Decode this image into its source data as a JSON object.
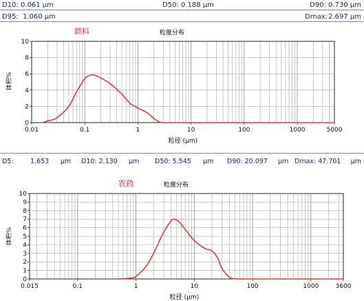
{
  "stats_top": {
    "d10": "D10: 0.061 µm",
    "d50": "D50: 0.188 µm",
    "d90": "D90: 0.730 µm",
    "d95_label": "D95:",
    "d95_value": "1.060 µm",
    "dmax_label": "Dmax:",
    "dmax_value": "2.697 µm"
  },
  "stats_bottom": {
    "d5_label": "D5:",
    "d5_value": "1.653",
    "d5_unit": "µm",
    "d10_label": "D10: 2.130",
    "d10_unit": "µm",
    "d50_label": "D50: 5.545",
    "d50_unit": "µm",
    "d90_label": "D90: 20.097",
    "d90_unit": "µm",
    "dmax_label": "Dmax: 47.701",
    "dmax_unit": "µm"
  },
  "colors": {
    "curve": "#e53935",
    "text_blue": "#1a237e",
    "grid": "#b0b0b0"
  },
  "chart_data": [
    {
      "type": "line",
      "name_label": "颜料",
      "title": "粒度分布",
      "xlabel": "粒径 (µm)",
      "ylabel": "体积%",
      "xscale": "log",
      "xlim": [
        0.01,
        5000
      ],
      "ylim": [
        0,
        10
      ],
      "xticks": [
        "0.01",
        "0.1",
        "1",
        "10",
        "100",
        "1000",
        "5000"
      ],
      "yticks": [
        "0",
        "2",
        "4",
        "6",
        "8",
        "10"
      ],
      "x": [
        0.016,
        0.02,
        0.03,
        0.05,
        0.07,
        0.1,
        0.13,
        0.16,
        0.2,
        0.3,
        0.5,
        0.7,
        1.0,
        1.5,
        2.0,
        2.5,
        3.0
      ],
      "y": [
        0.0,
        0.2,
        0.6,
        2.0,
        3.8,
        5.4,
        5.85,
        5.8,
        5.5,
        4.8,
        3.5,
        2.4,
        1.8,
        1.2,
        0.5,
        0.1,
        0.0
      ]
    },
    {
      "type": "line",
      "name_label": "农药",
      "title": "粒度分布",
      "xlabel": "粒径 (µm)",
      "ylabel": "体积%",
      "xscale": "log",
      "xlim": [
        0.015,
        3600
      ],
      "ylim": [
        0,
        10
      ],
      "xticks": [
        "0.015",
        "0.1",
        "1",
        "10",
        "100",
        "1000",
        "3600"
      ],
      "yticks": [
        "0",
        "1",
        "2",
        "3",
        "4",
        "5",
        "6",
        "7",
        "8",
        "9",
        "10"
      ],
      "x": [
        0.5,
        0.8,
        1.0,
        1.5,
        2.0,
        3.0,
        4.0,
        4.5,
        5.5,
        7.0,
        10.0,
        15.0,
        20.0,
        25.0,
        30.0,
        40.0,
        50.0
      ],
      "y": [
        0.0,
        0.1,
        0.3,
        1.5,
        3.0,
        5.5,
        6.8,
        7.0,
        6.7,
        5.8,
        4.5,
        3.6,
        3.3,
        2.5,
        1.2,
        0.2,
        0.0
      ]
    }
  ]
}
